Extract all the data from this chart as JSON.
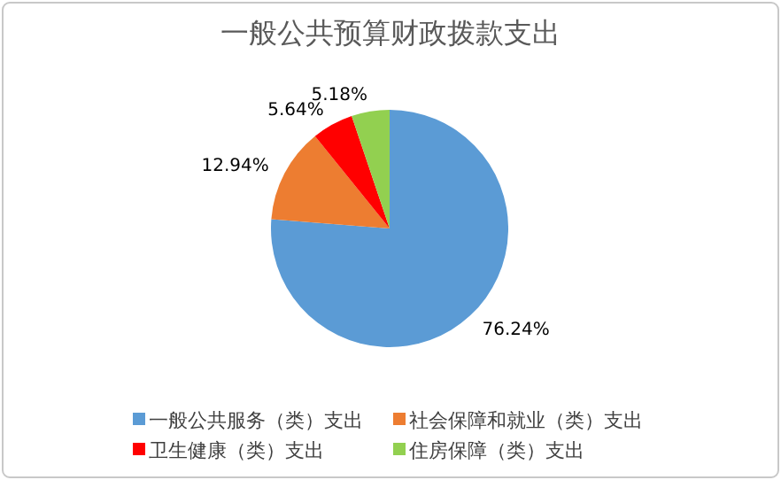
{
  "chart_data": {
    "type": "pie",
    "title": "一般公共预算财政拨款支出",
    "categories": [
      "一般公共服务（类）支出",
      "社会保障和就业（类）支出",
      "卫生健康（类）支出",
      "住房保障（类）支出"
    ],
    "values": [
      76.24,
      12.94,
      5.64,
      5.18
    ],
    "colors": [
      "#5b9bd5",
      "#ed7d31",
      "#ff0000",
      "#92d050"
    ],
    "value_labels": [
      "76.24%",
      "12.94%",
      "5.64%",
      "5.18%"
    ],
    "legend": "bottom"
  }
}
